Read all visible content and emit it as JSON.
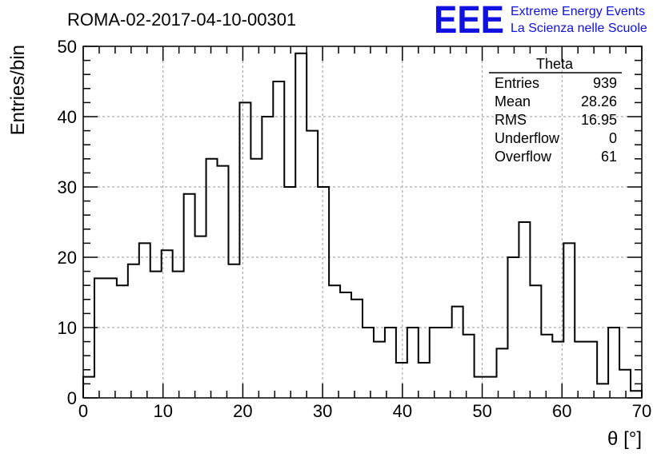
{
  "chart_data": {
    "type": "bar",
    "title": "ROMA-02-2017-04-10-00301",
    "xlabel": "θ [°]",
    "ylabel": "Entries/bin",
    "xlim": [
      0,
      70
    ],
    "ylim": [
      0,
      50
    ],
    "x_ticks": [
      0,
      10,
      20,
      30,
      40,
      50,
      60,
      70
    ],
    "y_ticks": [
      0,
      10,
      20,
      30,
      40,
      50
    ],
    "grid": true,
    "bin_width": 1.4,
    "values": [
      3,
      17,
      17,
      16,
      19,
      22,
      18,
      21,
      18,
      29,
      23,
      34,
      33,
      19,
      42,
      34,
      40,
      45,
      30,
      49,
      38,
      30,
      16,
      15,
      14,
      10,
      8,
      10,
      5,
      10,
      5,
      10,
      10,
      13,
      9,
      3,
      3,
      7,
      20,
      25,
      16,
      9,
      8,
      22,
      8,
      8,
      2,
      10,
      4,
      1
    ]
  },
  "stats_box": {
    "title": "Theta",
    "rows": [
      {
        "label": "Entries",
        "value": "939"
      },
      {
        "label": "Mean",
        "value": "28.26"
      },
      {
        "label": "RMS",
        "value": "16.95"
      },
      {
        "label": "Underflow",
        "value": "0"
      },
      {
        "label": "Overflow",
        "value": "61"
      }
    ]
  },
  "logo": {
    "mark": "EEE",
    "line1": "Extreme Energy Events",
    "line2": "La Scienza nelle Scuole",
    "color": "#1010e0"
  },
  "colors": {
    "histogram": "#000000",
    "grid": "#9a9a9a"
  }
}
